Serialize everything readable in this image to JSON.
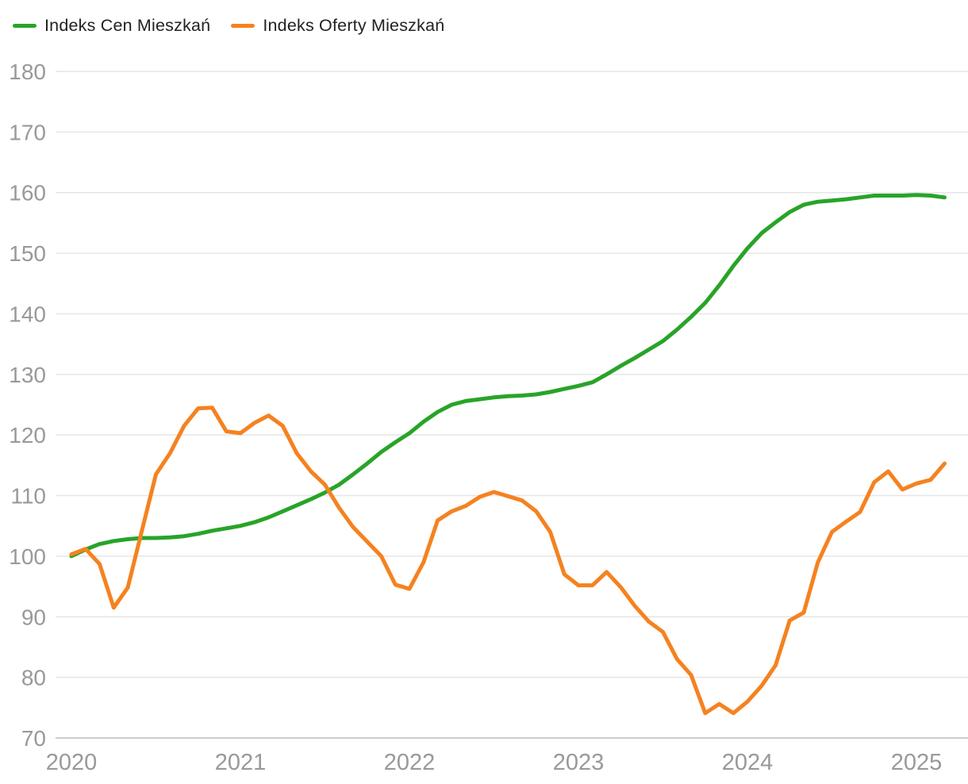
{
  "legend": {
    "items": [
      {
        "label": "Indeks Cen Mieszkań",
        "color": "#28a428"
      },
      {
        "label": "Indeks Oferty Mieszkań",
        "color": "#f58220"
      }
    ]
  },
  "chart_data": {
    "type": "line",
    "title": "",
    "xlabel": "",
    "ylabel": "",
    "x_unit": "month",
    "x_start": "2020-01",
    "x_end": "2025-03",
    "categories": [
      "2020-01",
      "2020-02",
      "2020-03",
      "2020-04",
      "2020-05",
      "2020-06",
      "2020-07",
      "2020-08",
      "2020-09",
      "2020-10",
      "2020-11",
      "2020-12",
      "2021-01",
      "2021-02",
      "2021-03",
      "2021-04",
      "2021-05",
      "2021-06",
      "2021-07",
      "2021-08",
      "2021-09",
      "2021-10",
      "2021-11",
      "2021-12",
      "2022-01",
      "2022-02",
      "2022-03",
      "2022-04",
      "2022-05",
      "2022-06",
      "2022-07",
      "2022-08",
      "2022-09",
      "2022-10",
      "2022-11",
      "2022-12",
      "2023-01",
      "2023-02",
      "2023-03",
      "2023-04",
      "2023-05",
      "2023-06",
      "2023-07",
      "2023-08",
      "2023-09",
      "2023-10",
      "2023-11",
      "2023-12",
      "2024-01",
      "2024-02",
      "2024-03",
      "2024-04",
      "2024-05",
      "2024-06",
      "2024-07",
      "2024-08",
      "2024-09",
      "2024-10",
      "2024-11",
      "2024-12",
      "2025-01",
      "2025-02",
      "2025-03"
    ],
    "series": [
      {
        "name": "Indeks Cen Mieszkań",
        "color": "#28a428",
        "values": [
          100.0,
          101.1,
          102.0,
          102.5,
          102.8,
          103.0,
          103.0,
          103.1,
          103.3,
          103.7,
          104.2,
          104.6,
          105.0,
          105.6,
          106.4,
          107.4,
          108.4,
          109.4,
          110.5,
          111.8,
          113.5,
          115.3,
          117.2,
          118.8,
          120.3,
          122.2,
          123.8,
          125.0,
          125.6,
          125.9,
          126.2,
          126.4,
          126.5,
          126.7,
          127.1,
          127.6,
          128.1,
          128.7,
          130.0,
          131.4,
          132.7,
          134.1,
          135.5,
          137.4,
          139.5,
          141.8,
          144.7,
          147.9,
          150.8,
          153.3,
          155.1,
          156.8,
          158.0,
          158.5,
          158.7,
          158.9,
          159.2,
          159.5,
          159.5,
          159.5,
          159.6,
          159.5,
          159.2
        ]
      },
      {
        "name": "Indeks Oferty Mieszkań",
        "color": "#f58220",
        "values": [
          100.3,
          101.2,
          98.7,
          91.5,
          94.8,
          104.2,
          113.5,
          117.0,
          121.5,
          124.4,
          124.5,
          120.6,
          120.3,
          122.0,
          123.2,
          121.5,
          117.0,
          114.0,
          111.8,
          108.0,
          104.8,
          102.4,
          100.0,
          95.3,
          94.6,
          99.0,
          105.9,
          107.4,
          108.3,
          109.8,
          110.6,
          109.9,
          109.2,
          107.4,
          104.0,
          97.0,
          95.2,
          95.2,
          97.4,
          94.9,
          91.8,
          89.2,
          87.5,
          83.0,
          80.4,
          74.1,
          75.6,
          74.1,
          76.0,
          78.6,
          82.0,
          89.4,
          90.7,
          99.0,
          104.0,
          105.7,
          107.3,
          112.2,
          114.0,
          111.0,
          112.0,
          112.6,
          115.3
        ]
      }
    ],
    "ylim": [
      70,
      180
    ],
    "y_ticks": [
      70,
      80,
      90,
      100,
      110,
      120,
      130,
      140,
      150,
      160,
      170,
      180
    ],
    "x_ticks": [
      {
        "label": "2020",
        "month_index": 0
      },
      {
        "label": "2021",
        "month_index": 12
      },
      {
        "label": "2022",
        "month_index": 24
      },
      {
        "label": "2023",
        "month_index": 36
      },
      {
        "label": "2024",
        "month_index": 48
      },
      {
        "label": "2025",
        "month_index": 60
      }
    ],
    "grid": "horizontal",
    "legend_position": "top-left",
    "colors": {
      "background": "#ffffff",
      "grid_line": "#e6e6e6",
      "axis_line": "#cccccc",
      "tick_label": "#999999",
      "legend_text": "#222222"
    }
  }
}
